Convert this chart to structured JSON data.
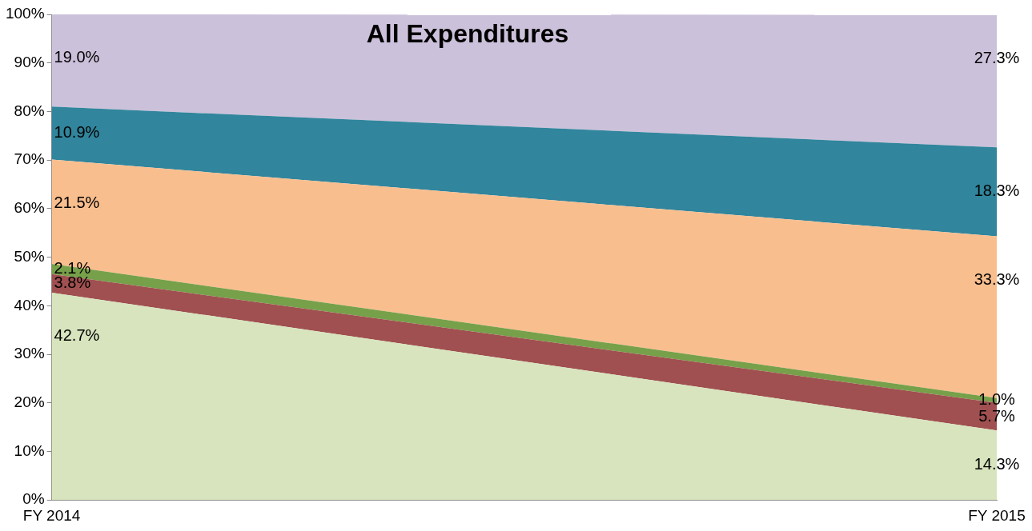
{
  "chart_data": {
    "type": "area",
    "title": "All Expenditures",
    "stacked": true,
    "categories": [
      "FY 2014",
      "FY 2015"
    ],
    "series": [
      {
        "color": "#d7e4bd",
        "values": [
          42.7,
          14.3
        ],
        "value_labels": [
          "42.7%",
          "14.3%"
        ]
      },
      {
        "color": "#a05050",
        "values": [
          3.8,
          5.7
        ],
        "value_labels": [
          "3.8%",
          "5.7%"
        ]
      },
      {
        "color": "#77a04a",
        "values": [
          2.1,
          1.0
        ],
        "value_labels": [
          "2.1%",
          "1.0%"
        ]
      },
      {
        "color": "#f9be8e",
        "values": [
          21.5,
          33.3
        ],
        "value_labels": [
          "21.5%",
          "33.3%"
        ]
      },
      {
        "color": "#31859c",
        "values": [
          10.9,
          18.3
        ],
        "value_labels": [
          "10.9%",
          "18.3%"
        ]
      },
      {
        "color": "#ccc1da",
        "values": [
          19.0,
          27.3
        ],
        "value_labels": [
          "19.0%",
          "27.3%"
        ]
      }
    ],
    "ylim": [
      0,
      100
    ],
    "yticks": [
      {
        "value": 0,
        "label": "0%"
      },
      {
        "value": 10,
        "label": "10%"
      },
      {
        "value": 20,
        "label": "20%"
      },
      {
        "value": 30,
        "label": "30%"
      },
      {
        "value": 40,
        "label": "40%"
      },
      {
        "value": 50,
        "label": "50%"
      },
      {
        "value": 60,
        "label": "60%"
      },
      {
        "value": 70,
        "label": "70%"
      },
      {
        "value": 80,
        "label": "80%"
      },
      {
        "value": 90,
        "label": "90%"
      },
      {
        "value": 100,
        "label": "100%"
      }
    ],
    "grid": false,
    "legend": false
  }
}
